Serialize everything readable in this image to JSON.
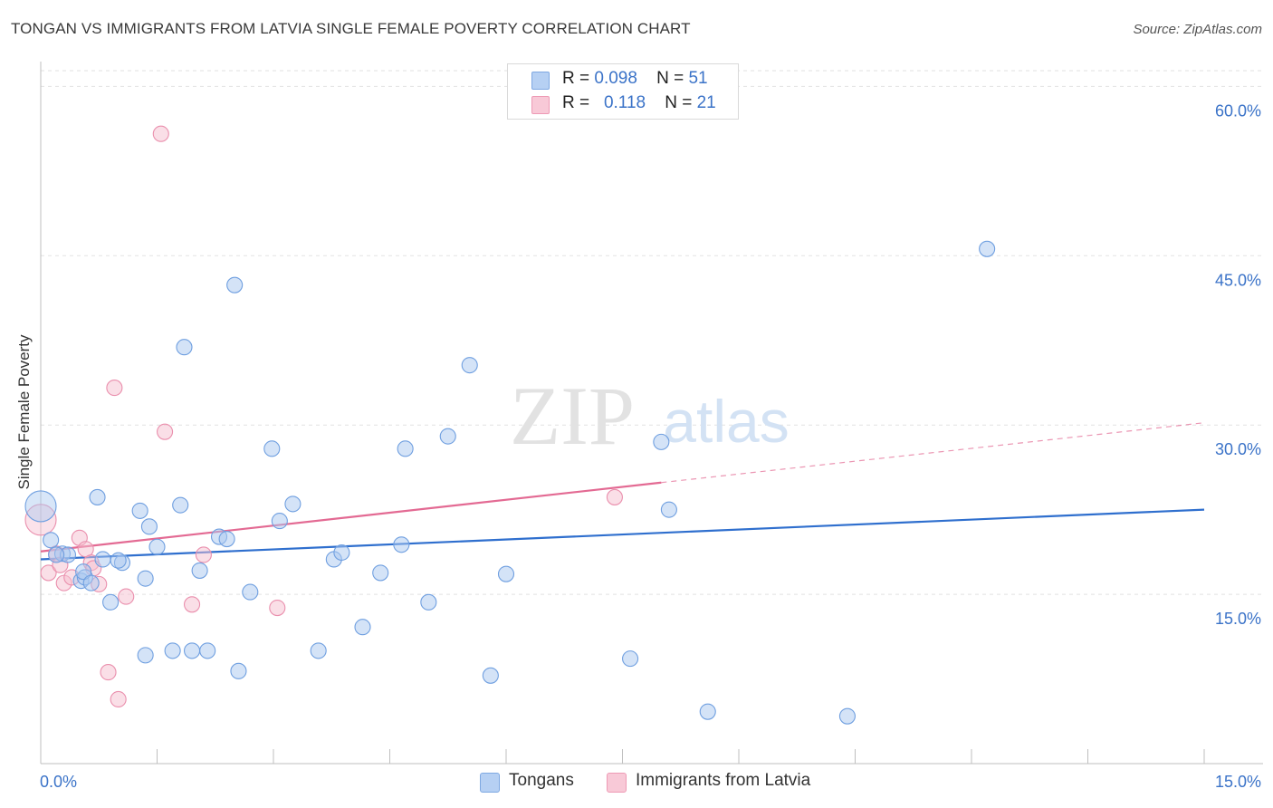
{
  "title": "TONGAN VS IMMIGRANTS FROM LATVIA SINGLE FEMALE POVERTY CORRELATION CHART",
  "source": "Source: ZipAtlas.com",
  "watermark": {
    "zip": "ZIP",
    "atlas": "atlas"
  },
  "legend": {
    "rows": [
      {
        "r_label": "R =",
        "r_value": "0.098",
        "n_label": "N =",
        "n_value": "51"
      },
      {
        "r_label": "R =",
        "r_value": "0.118",
        "n_label": "N =",
        "n_value": "21"
      }
    ]
  },
  "bottom_legend": {
    "tongans": "Tongans",
    "latvia": "Immigrants from Latvia"
  },
  "colors": {
    "blue_fill": "#a9c8f0",
    "blue_stroke": "#6f9fe0",
    "blue_line": "#2f6fce",
    "pink_fill": "#f6bfd0",
    "pink_stroke": "#ea8fad",
    "pink_line": "#e36a93",
    "axis_text": "#3b73c8",
    "grid": "#e2e2e2"
  },
  "chart_data": {
    "type": "scatter",
    "title": "TONGAN VS IMMIGRANTS FROM LATVIA SINGLE FEMALE POVERTY CORRELATION CHART",
    "xlabel": "",
    "ylabel": "Single Female Poverty",
    "xlim": [
      0,
      15
    ],
    "ylim": [
      0,
      63
    ],
    "x_tick_labels": [
      "0.0%",
      "15.0%"
    ],
    "y_ticks": [
      15,
      30,
      45,
      60
    ],
    "y_tick_labels": [
      "15.0%",
      "30.0%",
      "45.0%",
      "60.0%"
    ],
    "grid": "horizontal dashed",
    "legend_position": "top-center",
    "series": [
      {
        "name": "Tongans",
        "r": 0.098,
        "n": 51,
        "trend": {
          "x": [
            0,
            15
          ],
          "y": [
            18.1,
            22.5
          ],
          "dashed_extension": false
        },
        "points": [
          {
            "x": 0.0,
            "y": 22.8,
            "big": true
          },
          {
            "x": 0.13,
            "y": 19.8
          },
          {
            "x": 0.28,
            "y": 18.6
          },
          {
            "x": 0.35,
            "y": 18.5
          },
          {
            "x": 0.52,
            "y": 16.2
          },
          {
            "x": 0.57,
            "y": 16.5
          },
          {
            "x": 0.73,
            "y": 23.6
          },
          {
            "x": 0.8,
            "y": 18.1
          },
          {
            "x": 0.9,
            "y": 14.3
          },
          {
            "x": 1.05,
            "y": 17.8
          },
          {
            "x": 1.28,
            "y": 22.4
          },
          {
            "x": 1.35,
            "y": 16.4
          },
          {
            "x": 1.4,
            "y": 21.0
          },
          {
            "x": 1.35,
            "y": 9.6
          },
          {
            "x": 1.5,
            "y": 19.2
          },
          {
            "x": 1.7,
            "y": 10.0
          },
          {
            "x": 1.8,
            "y": 22.9
          },
          {
            "x": 1.85,
            "y": 36.9
          },
          {
            "x": 1.95,
            "y": 10.0
          },
          {
            "x": 2.05,
            "y": 17.1
          },
          {
            "x": 2.15,
            "y": 10.0
          },
          {
            "x": 2.3,
            "y": 20.1
          },
          {
            "x": 2.4,
            "y": 19.9
          },
          {
            "x": 2.5,
            "y": 42.4
          },
          {
            "x": 2.55,
            "y": 8.2
          },
          {
            "x": 2.7,
            "y": 15.2
          },
          {
            "x": 2.98,
            "y": 27.9
          },
          {
            "x": 3.08,
            "y": 21.5
          },
          {
            "x": 3.25,
            "y": 23.0
          },
          {
            "x": 3.58,
            "y": 10.0
          },
          {
            "x": 3.78,
            "y": 18.1
          },
          {
            "x": 3.88,
            "y": 18.7
          },
          {
            "x": 4.15,
            "y": 12.1
          },
          {
            "x": 4.38,
            "y": 16.9
          },
          {
            "x": 4.65,
            "y": 19.4
          },
          {
            "x": 4.7,
            "y": 27.9
          },
          {
            "x": 5.0,
            "y": 14.3
          },
          {
            "x": 5.25,
            "y": 29.0
          },
          {
            "x": 5.53,
            "y": 35.3
          },
          {
            "x": 5.8,
            "y": 7.8
          },
          {
            "x": 6.0,
            "y": 16.8
          },
          {
            "x": 7.6,
            "y": 9.3
          },
          {
            "x": 8.0,
            "y": 28.5
          },
          {
            "x": 8.1,
            "y": 22.5
          },
          {
            "x": 8.6,
            "y": 4.6
          },
          {
            "x": 10.4,
            "y": 4.2
          },
          {
            "x": 12.2,
            "y": 45.6
          },
          {
            "x": 0.55,
            "y": 17.0
          },
          {
            "x": 0.2,
            "y": 18.5
          },
          {
            "x": 0.65,
            "y": 16.0
          },
          {
            "x": 1.0,
            "y": 18.0
          }
        ]
      },
      {
        "name": "Immigrants from Latvia",
        "r": 0.118,
        "n": 21,
        "trend": {
          "x": [
            0,
            8.0
          ],
          "y": [
            18.8,
            24.9
          ],
          "dashed_to": [
            15,
            30.2
          ]
        },
        "points": [
          {
            "x": 0.0,
            "y": 21.6,
            "big": true
          },
          {
            "x": 0.1,
            "y": 16.9
          },
          {
            "x": 0.2,
            "y": 18.6
          },
          {
            "x": 0.3,
            "y": 16.0
          },
          {
            "x": 0.4,
            "y": 16.5
          },
          {
            "x": 0.5,
            "y": 20.0
          },
          {
            "x": 0.58,
            "y": 19.0
          },
          {
            "x": 0.65,
            "y": 17.8
          },
          {
            "x": 0.75,
            "y": 15.9
          },
          {
            "x": 0.87,
            "y": 8.1
          },
          {
            "x": 0.95,
            "y": 33.3
          },
          {
            "x": 1.0,
            "y": 5.7
          },
          {
            "x": 1.1,
            "y": 14.8
          },
          {
            "x": 1.55,
            "y": 55.8
          },
          {
            "x": 1.6,
            "y": 29.4
          },
          {
            "x": 1.95,
            "y": 14.1
          },
          {
            "x": 2.1,
            "y": 18.5
          },
          {
            "x": 3.05,
            "y": 13.8
          },
          {
            "x": 7.4,
            "y": 23.6
          },
          {
            "x": 0.25,
            "y": 17.6
          },
          {
            "x": 0.68,
            "y": 17.3
          }
        ]
      }
    ]
  }
}
